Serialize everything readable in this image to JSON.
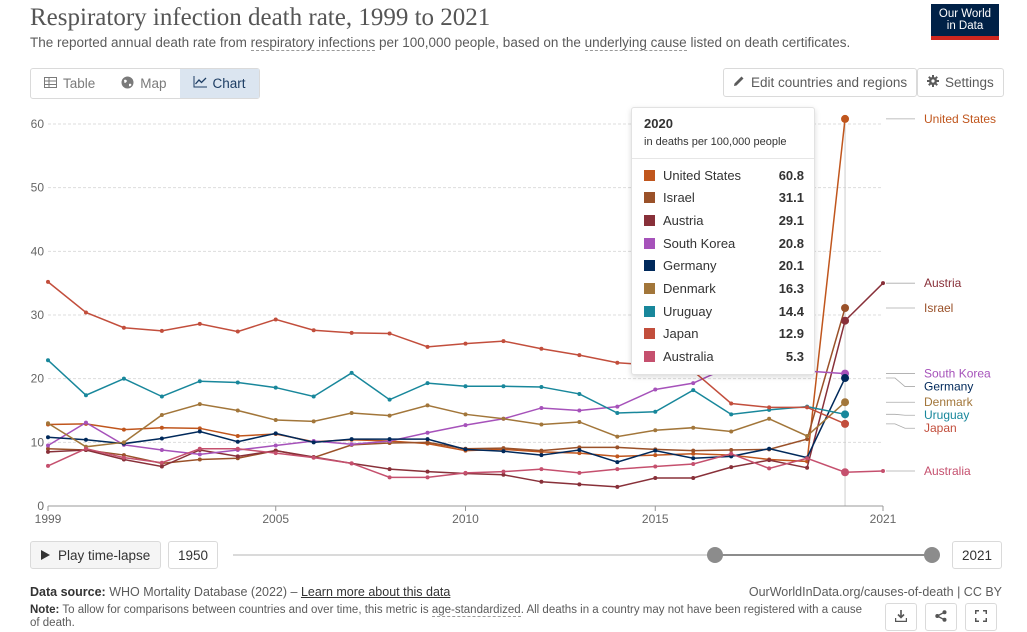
{
  "header": {
    "title": "Respiratory infection death rate, 1999 to 2021",
    "subtitle_pre": "The reported annual death rate from ",
    "subtitle_link1": "respiratory infections",
    "subtitle_mid": " per 100,000 people, based on the ",
    "subtitle_link2": "underlying cause",
    "subtitle_post": " listed on death certificates.",
    "logo_line1": "Our World",
    "logo_line2": "in Data"
  },
  "toolbar": {
    "tabs": [
      {
        "label": "Table",
        "icon": "table-icon"
      },
      {
        "label": "Map",
        "icon": "globe-icon"
      },
      {
        "label": "Chart",
        "icon": "line-chart-icon"
      }
    ],
    "active_tab": "Chart",
    "edit_label": "Edit countries and regions",
    "settings_label": "Settings"
  },
  "tooltip": {
    "year": "2020",
    "unit": "in deaths per 100,000 people",
    "rows": [
      {
        "name": "United States",
        "value": "60.8",
        "color": "#c0561d"
      },
      {
        "name": "Israel",
        "value": "31.1",
        "color": "#9a5129"
      },
      {
        "name": "Austria",
        "value": "29.1",
        "color": "#883039"
      },
      {
        "name": "South Korea",
        "value": "20.8",
        "color": "#a652ba"
      },
      {
        "name": "Germany",
        "value": "20.1",
        "color": "#00295b"
      },
      {
        "name": "Denmark",
        "value": "16.3",
        "color": "#a2763a"
      },
      {
        "name": "Uruguay",
        "value": "14.4",
        "color": "#18879b"
      },
      {
        "name": "Japan",
        "value": "12.9",
        "color": "#c24e3c"
      },
      {
        "name": "Australia",
        "value": "5.3",
        "color": "#c5506e"
      }
    ]
  },
  "timeline": {
    "play_label": "Play time-lapse",
    "start_year": "1950",
    "end_year": "2021",
    "range_start_fraction": 0.68,
    "range_end_fraction": 1.0
  },
  "footer": {
    "source_label": "Data source:",
    "source_text": " WHO Mortality Database (2022) – ",
    "source_link": "Learn more about this data",
    "license": "OurWorldInData.org/causes-of-death | CC BY",
    "note_label": "Note:",
    "note_pre": " To allow for comparisons between countries and over time, this metric is ",
    "note_link": "age-standardized",
    "note_post": ". All deaths in a country may not have been registered with a cause of death."
  },
  "chart_data": {
    "type": "line",
    "title": "Respiratory infection death rate, 1999 to 2021",
    "xlim": [
      1999,
      2021
    ],
    "ylim": [
      0,
      60
    ],
    "x_ticks": [
      1999,
      2005,
      2010,
      2015,
      2021
    ],
    "y_ticks": [
      0,
      10,
      20,
      30,
      40,
      50,
      60
    ],
    "highlight_x": 2020,
    "x": [
      1999,
      2000,
      2001,
      2002,
      2003,
      2004,
      2005,
      2006,
      2007,
      2008,
      2009,
      2010,
      2011,
      2012,
      2013,
      2014,
      2015,
      2016,
      2017,
      2018,
      2019,
      2020,
      2021
    ],
    "series": [
      {
        "name": "United States",
        "color": "#c0561d",
        "values": [
          12.8,
          12.9,
          12.0,
          12.3,
          12.2,
          11.0,
          11.3,
          10.1,
          10.4,
          10.2,
          9.8,
          8.7,
          8.9,
          8.5,
          8.3,
          7.8,
          8.0,
          8.2,
          8.0,
          7.3,
          7.0,
          60.8,
          null
        ]
      },
      {
        "name": "Israel",
        "color": "#9a5129",
        "values": [
          9.0,
          8.8,
          8.0,
          6.7,
          7.3,
          7.5,
          8.7,
          7.6,
          9.6,
          9.9,
          10.0,
          9.0,
          9.1,
          8.7,
          9.2,
          9.2,
          8.9,
          8.7,
          8.8,
          8.9,
          10.5,
          31.1,
          null
        ]
      },
      {
        "name": "Austria",
        "color": "#883039",
        "values": [
          8.5,
          8.8,
          7.3,
          6.2,
          8.8,
          7.8,
          8.7,
          7.7,
          6.7,
          5.8,
          5.4,
          5.1,
          4.9,
          3.8,
          3.4,
          3.0,
          4.4,
          4.4,
          6.1,
          7.2,
          6.0,
          29.1,
          35.0
        ]
      },
      {
        "name": "South Korea",
        "color": "#a652ba",
        "values": [
          9.5,
          13.1,
          9.6,
          8.8,
          8.1,
          8.8,
          9.5,
          10.2,
          9.7,
          10.2,
          11.5,
          12.7,
          13.7,
          15.4,
          15.0,
          15.6,
          18.3,
          19.3,
          22.0,
          null,
          null,
          20.8,
          null
        ]
      },
      {
        "name": "Germany",
        "color": "#00295b",
        "values": [
          10.8,
          10.4,
          9.8,
          10.6,
          11.7,
          10.1,
          11.4,
          10.0,
          10.5,
          10.5,
          10.5,
          8.9,
          8.6,
          8.0,
          8.8,
          6.9,
          8.7,
          7.5,
          7.8,
          9.0,
          7.6,
          20.1,
          null
        ]
      },
      {
        "name": "Denmark",
        "color": "#a2763a",
        "values": [
          13.0,
          9.3,
          10.0,
          14.3,
          16.0,
          15.0,
          13.5,
          13.3,
          14.6,
          14.2,
          15.8,
          14.4,
          13.7,
          12.8,
          13.2,
          10.9,
          11.9,
          12.3,
          11.7,
          13.7,
          11.0,
          16.3,
          null
        ]
      },
      {
        "name": "Uruguay",
        "color": "#18879b",
        "values": [
          22.9,
          17.4,
          20.0,
          17.2,
          19.6,
          19.4,
          18.6,
          17.2,
          20.9,
          16.7,
          19.3,
          18.8,
          18.8,
          18.7,
          17.6,
          14.6,
          14.8,
          18.2,
          14.4,
          15.1,
          15.6,
          14.4,
          null
        ]
      },
      {
        "name": "Japan",
        "color": "#c24e3c",
        "values": [
          35.2,
          30.4,
          28.0,
          27.5,
          28.6,
          27.4,
          29.3,
          27.6,
          27.2,
          27.1,
          25.0,
          25.5,
          25.9,
          24.7,
          23.7,
          22.5,
          22.1,
          21.2,
          16.1,
          15.5,
          15.5,
          12.9,
          null
        ]
      },
      {
        "name": "Australia",
        "color": "#c5506e",
        "values": [
          6.3,
          9.0,
          7.6,
          6.8,
          9.0,
          9.0,
          8.3,
          7.6,
          6.7,
          4.5,
          4.5,
          5.2,
          5.4,
          5.8,
          5.2,
          5.8,
          6.2,
          6.6,
          8.2,
          5.9,
          7.5,
          5.3,
          5.5
        ]
      }
    ],
    "end_labels": [
      {
        "name": "United States",
        "color": "#c0561d",
        "anchor": 60.8
      },
      {
        "name": "Austria",
        "color": "#883039",
        "anchor": 35.0
      },
      {
        "name": "Israel",
        "color": "#9a5129",
        "anchor": 31.1
      },
      {
        "name": "South Korea",
        "color": "#a652ba",
        "anchor": 20.8
      },
      {
        "name": "Germany",
        "color": "#00295b",
        "anchor": 20.1
      },
      {
        "name": "Denmark",
        "color": "#a2763a",
        "anchor": 16.3
      },
      {
        "name": "Uruguay",
        "color": "#18879b",
        "anchor": 14.4
      },
      {
        "name": "Japan",
        "color": "#c24e3c",
        "anchor": 12.9
      },
      {
        "name": "Australia",
        "color": "#c5506e",
        "anchor": 5.5
      }
    ]
  }
}
